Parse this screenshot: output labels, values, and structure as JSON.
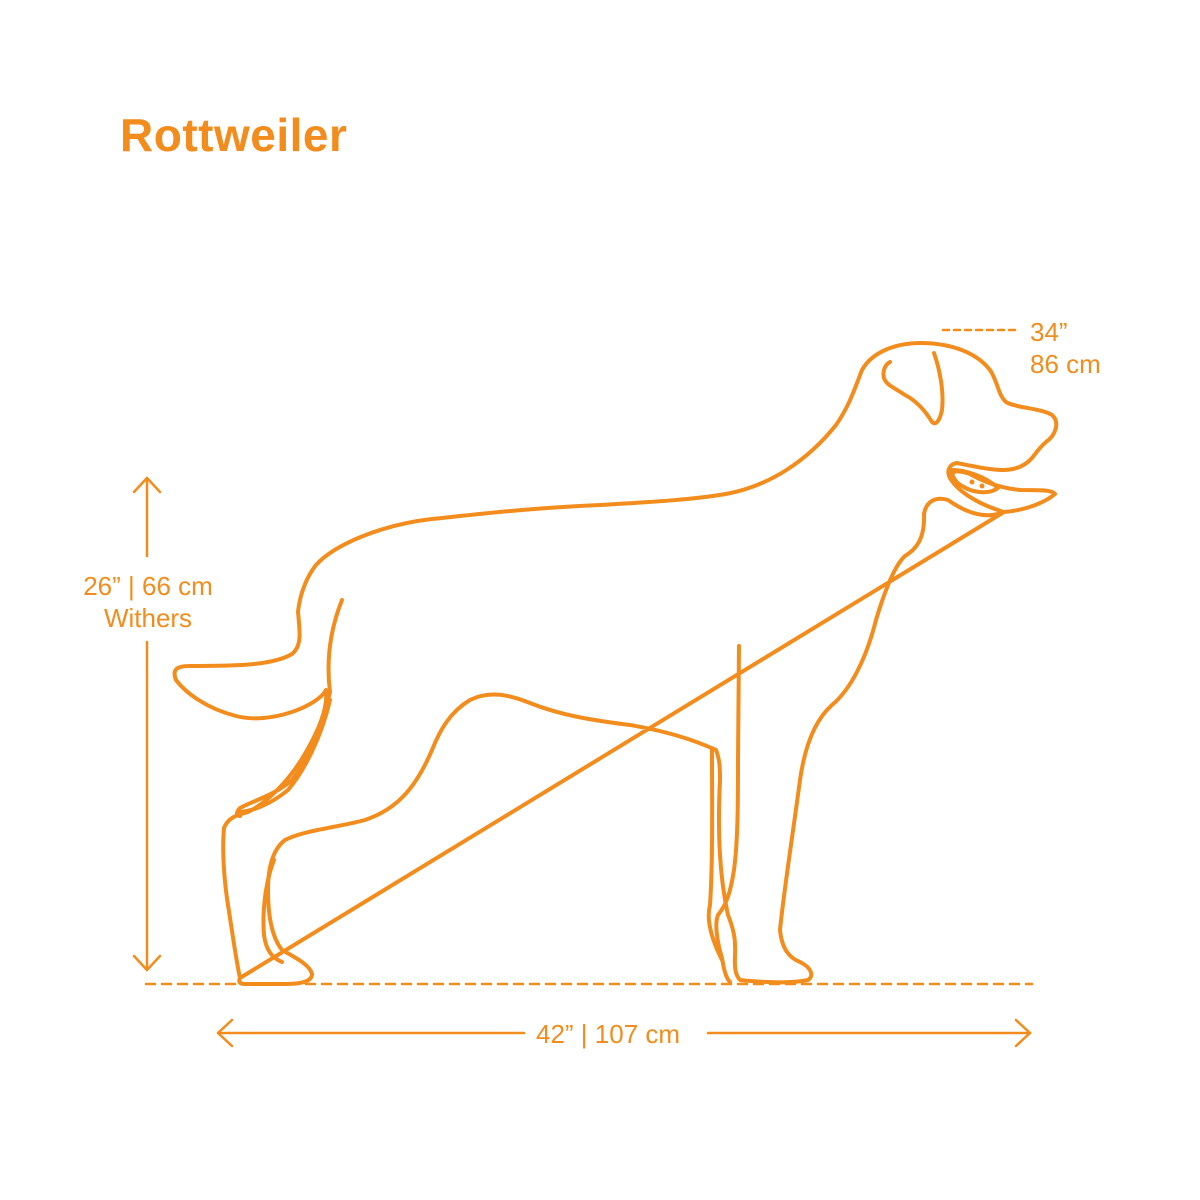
{
  "title": "Rottweiler",
  "measurements": {
    "head_height": {
      "inches": "34”",
      "cm": "86 cm"
    },
    "withers_height": {
      "value": "26” | 66 cm",
      "label": "Withers"
    },
    "length": {
      "value": "42” | 107 cm"
    }
  },
  "colors": {
    "accent": "#f28c1c"
  },
  "icons": [
    "vertical-double-arrow-icon",
    "horizontal-double-arrow-icon",
    "dog-silhouette-icon"
  ]
}
